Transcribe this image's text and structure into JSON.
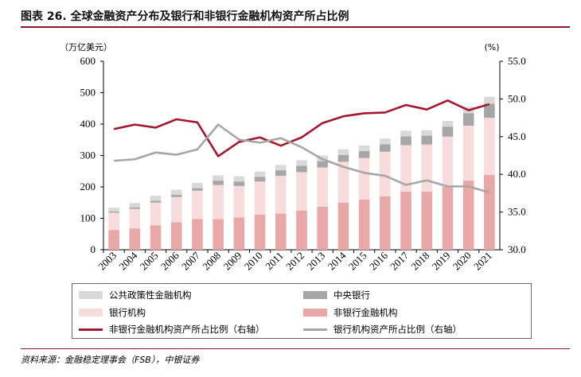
{
  "title": "图表 26. 全球金融资产分布及银行和非银行金融机构资产所占比例",
  "source": "资料来源：金融稳定理事会（FSB），中银证券",
  "colors": {
    "public": "#D9D9D9",
    "central": "#A6A6A6",
    "bank": "#F8DCDC",
    "nonbank": "#E8A8A8",
    "nonbank_line": "#A3182F",
    "bank_line": "#A6A6A6",
    "accent": "#8B1A2B"
  },
  "chart_data": {
    "type": "bar",
    "stacked": true,
    "left_unit": "（万亿美元）",
    "right_unit": "(%)",
    "categories": [
      "2003",
      "2004",
      "2005",
      "2006",
      "2007",
      "2008",
      "2009",
      "2010",
      "2011",
      "2012",
      "2013",
      "2014",
      "2015",
      "2016",
      "2017",
      "2018",
      "2019",
      "2020",
      "2021"
    ],
    "left_ylim": [
      0,
      600
    ],
    "left_ticks": [
      "0",
      "100",
      "200",
      "300",
      "400",
      "500",
      "600"
    ],
    "right_ylim": [
      30.0,
      55.0
    ],
    "right_ticks": [
      "30.0",
      "35.0",
      "40.0",
      "45.0",
      "50.0",
      "55.0"
    ],
    "series": [
      {
        "name": "非银行金融机构",
        "kind": "bar",
        "color_key": "nonbank",
        "values": [
          63,
          68,
          78,
          88,
          98,
          98,
          103,
          112,
          115,
          125,
          137,
          150,
          160,
          170,
          185,
          185,
          200,
          220,
          238
        ]
      },
      {
        "name": "银行机构",
        "kind": "bar",
        "color_key": "bank",
        "values": [
          55,
          62,
          72,
          80,
          90,
          108,
          100,
          105,
          120,
          122,
          125,
          130,
          132,
          142,
          148,
          150,
          160,
          175,
          182
        ]
      },
      {
        "name": "中央银行",
        "kind": "bar",
        "color_key": "central",
        "values": [
          4,
          5,
          6,
          7,
          8,
          14,
          14,
          15,
          18,
          20,
          20,
          22,
          22,
          24,
          28,
          28,
          32,
          40,
          45
        ]
      },
      {
        "name": "公共政策性金融机构",
        "kind": "bar",
        "color_key": "public",
        "values": [
          12,
          14,
          16,
          16,
          17,
          17,
          17,
          17,
          17,
          18,
          18,
          18,
          18,
          18,
          18,
          18,
          18,
          20,
          22
        ]
      },
      {
        "name": "非银行金融机构资产所占比例（右轴）",
        "kind": "line",
        "axis": "right",
        "color_key": "nonbank_line",
        "values": [
          46.0,
          46.6,
          46.2,
          47.3,
          46.9,
          42.4,
          44.3,
          44.9,
          43.8,
          44.9,
          46.8,
          47.7,
          48.1,
          48.2,
          49.2,
          48.6,
          49.8,
          48.5,
          49.3
        ]
      },
      {
        "name": "银行机构资产所占比例（右轴）",
        "kind": "line",
        "axis": "right",
        "color_key": "bank_line",
        "values": [
          41.8,
          42.0,
          42.9,
          42.6,
          43.3,
          46.6,
          44.6,
          44.2,
          44.8,
          43.6,
          42.0,
          41.0,
          40.2,
          39.8,
          38.6,
          39.2,
          38.4,
          38.4,
          37.6
        ]
      }
    ],
    "legend": {
      "items": [
        {
          "label": "公共政策性金融机构",
          "kind": "swatch",
          "color_key": "public"
        },
        {
          "label": "中央银行",
          "kind": "swatch",
          "color_key": "central"
        },
        {
          "label": "银行机构",
          "kind": "swatch",
          "color_key": "bank"
        },
        {
          "label": "非银行金融机构",
          "kind": "swatch",
          "color_key": "nonbank"
        },
        {
          "label": "非银行金融机构资产所占比例（右轴）",
          "kind": "line",
          "color_key": "nonbank_line"
        },
        {
          "label": "银行机构资产所占比例（右轴）",
          "kind": "line",
          "color_key": "bank_line"
        }
      ]
    }
  }
}
